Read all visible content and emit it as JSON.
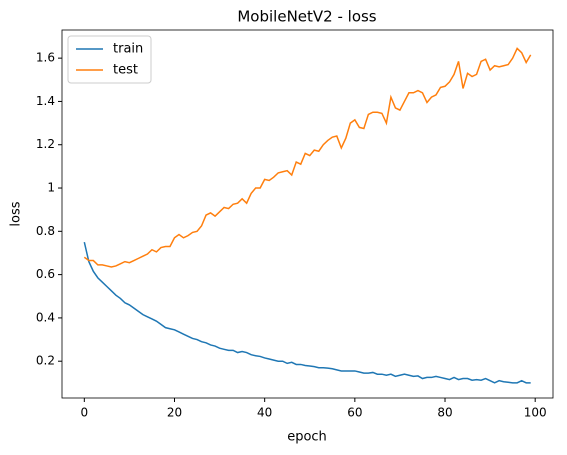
{
  "chart_data": {
    "type": "line",
    "title": "MobileNetV2 - loss",
    "x_label": "epoch",
    "y_label": "loss",
    "x": [
      0,
      1,
      2,
      3,
      4,
      5,
      6,
      7,
      8,
      9,
      10,
      11,
      12,
      13,
      14,
      15,
      16,
      17,
      18,
      19,
      20,
      21,
      22,
      23,
      24,
      25,
      26,
      27,
      28,
      29,
      30,
      31,
      32,
      33,
      34,
      35,
      36,
      37,
      38,
      39,
      40,
      41,
      42,
      43,
      44,
      45,
      46,
      47,
      48,
      49,
      50,
      51,
      52,
      53,
      54,
      55,
      56,
      57,
      58,
      59,
      60,
      61,
      62,
      63,
      64,
      65,
      66,
      67,
      68,
      69,
      70,
      71,
      72,
      73,
      74,
      75,
      76,
      77,
      78,
      79,
      80,
      81,
      82,
      83,
      84,
      85,
      86,
      87,
      88,
      89,
      90,
      91,
      92,
      93,
      94,
      95,
      96,
      97,
      98,
      99
    ],
    "series": [
      {
        "name": "train",
        "color": "#1f77b4",
        "values": [
          0.75,
          0.66,
          0.615,
          0.585,
          0.565,
          0.545,
          0.525,
          0.505,
          0.49,
          0.47,
          0.46,
          0.445,
          0.43,
          0.415,
          0.405,
          0.395,
          0.385,
          0.37,
          0.355,
          0.35,
          0.345,
          0.335,
          0.325,
          0.315,
          0.305,
          0.3,
          0.29,
          0.285,
          0.275,
          0.27,
          0.26,
          0.255,
          0.25,
          0.25,
          0.24,
          0.245,
          0.24,
          0.23,
          0.225,
          0.222,
          0.215,
          0.21,
          0.205,
          0.2,
          0.2,
          0.19,
          0.195,
          0.185,
          0.185,
          0.18,
          0.178,
          0.175,
          0.17,
          0.17,
          0.168,
          0.165,
          0.16,
          0.155,
          0.155,
          0.155,
          0.155,
          0.15,
          0.145,
          0.145,
          0.148,
          0.14,
          0.14,
          0.135,
          0.14,
          0.13,
          0.135,
          0.14,
          0.135,
          0.13,
          0.132,
          0.12,
          0.125,
          0.125,
          0.13,
          0.125,
          0.12,
          0.115,
          0.125,
          0.115,
          0.12,
          0.12,
          0.112,
          0.115,
          0.112,
          0.12,
          0.11,
          0.1,
          0.11,
          0.105,
          0.103,
          0.1,
          0.1,
          0.11,
          0.1,
          0.1
        ]
      },
      {
        "name": "test",
        "color": "#ff7f0e",
        "values": [
          0.68,
          0.665,
          0.665,
          0.645,
          0.645,
          0.64,
          0.635,
          0.64,
          0.65,
          0.66,
          0.655,
          0.665,
          0.675,
          0.685,
          0.695,
          0.715,
          0.705,
          0.725,
          0.73,
          0.73,
          0.77,
          0.785,
          0.77,
          0.78,
          0.795,
          0.8,
          0.825,
          0.875,
          0.885,
          0.87,
          0.89,
          0.91,
          0.905,
          0.925,
          0.93,
          0.95,
          0.93,
          0.975,
          1.0,
          1.0,
          1.04,
          1.035,
          1.05,
          1.07,
          1.075,
          1.08,
          1.06,
          1.12,
          1.11,
          1.16,
          1.15,
          1.175,
          1.17,
          1.2,
          1.22,
          1.235,
          1.24,
          1.185,
          1.23,
          1.3,
          1.315,
          1.28,
          1.275,
          1.34,
          1.35,
          1.35,
          1.345,
          1.3,
          1.42,
          1.37,
          1.36,
          1.4,
          1.44,
          1.44,
          1.45,
          1.44,
          1.395,
          1.42,
          1.43,
          1.465,
          1.47,
          1.49,
          1.525,
          1.585,
          1.46,
          1.53,
          1.515,
          1.525,
          1.585,
          1.595,
          1.545,
          1.565,
          1.56,
          1.565,
          1.57,
          1.6,
          1.645,
          1.625,
          1.58,
          1.615
        ]
      }
    ],
    "xlim": [
      -4.95,
      103.95
    ],
    "xticks": [
      0,
      20,
      40,
      60,
      80,
      100
    ],
    "ylim": [
      0.03,
      1.73
    ],
    "yticks": [
      0.2,
      0.4,
      0.6,
      0.8,
      1.0,
      1.2,
      1.4,
      1.6
    ],
    "legend": "upper left",
    "grid": false
  }
}
